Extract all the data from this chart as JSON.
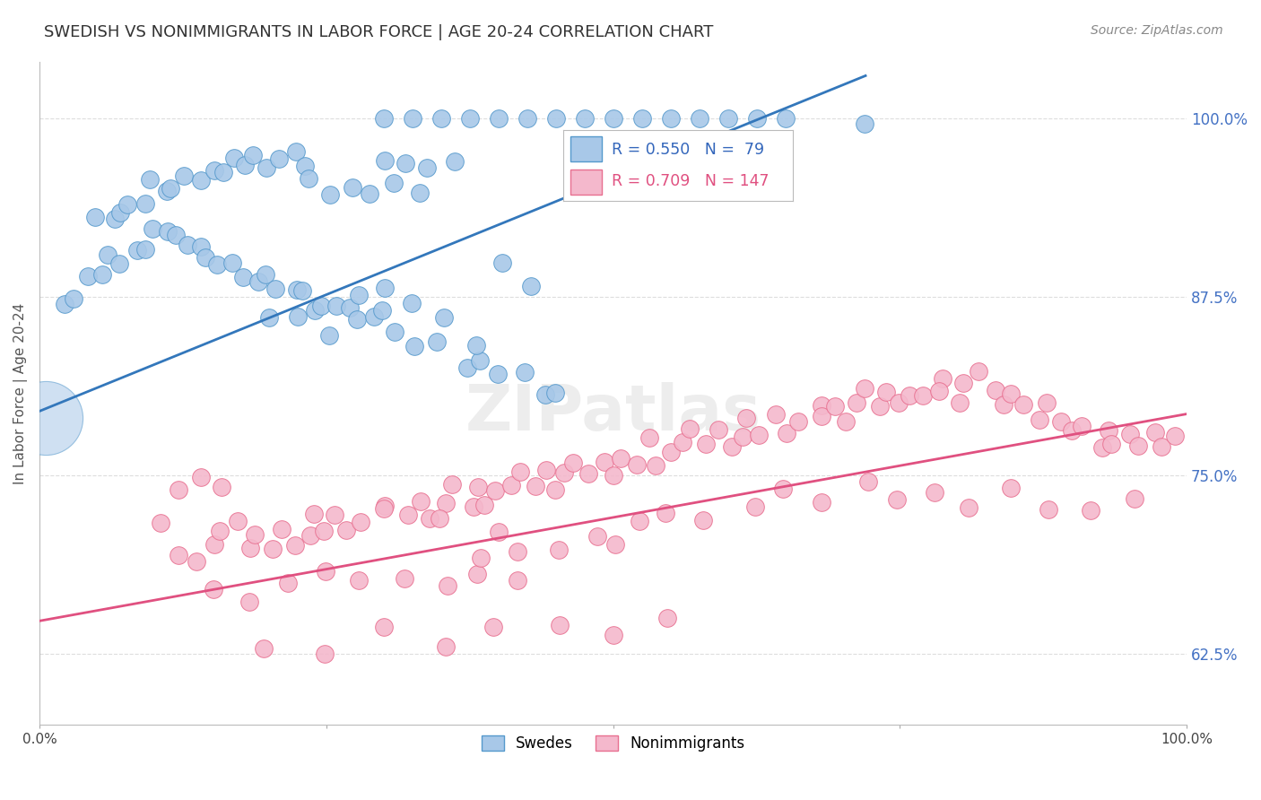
{
  "title": "SWEDISH VS NONIMMIGRANTS IN LABOR FORCE | AGE 20-24 CORRELATION CHART",
  "source": "Source: ZipAtlas.com",
  "ylabel": "In Labor Force | Age 20-24",
  "y_tick_labels": [
    "62.5%",
    "75.0%",
    "87.5%",
    "100.0%"
  ],
  "y_ticks": [
    0.625,
    0.75,
    0.875,
    1.0
  ],
  "xlim": [
    0.0,
    1.0
  ],
  "ylim": [
    0.575,
    1.04
  ],
  "blue_R": 0.55,
  "blue_N": 79,
  "pink_R": 0.709,
  "pink_N": 147,
  "blue_color": "#a8c8e8",
  "blue_edge_color": "#5599cc",
  "blue_line_color": "#3377bb",
  "pink_color": "#f4b8cc",
  "pink_edge_color": "#e87090",
  "pink_line_color": "#e05080",
  "legend_label_blue": "Swedes",
  "legend_label_pink": "Nonimmigrants",
  "title_color": "#333333",
  "grid_color": "#dddddd",
  "blue_line": {
    "x0": 0.0,
    "x1": 0.72,
    "y0": 0.795,
    "y1": 1.03
  },
  "pink_line": {
    "x0": 0.0,
    "x1": 1.0,
    "y0": 0.648,
    "y1": 0.793
  },
  "blue_scatter_x": [
    0.02,
    0.03,
    0.04,
    0.05,
    0.06,
    0.07,
    0.08,
    0.09,
    0.1,
    0.11,
    0.12,
    0.13,
    0.14,
    0.15,
    0.16,
    0.17,
    0.18,
    0.19,
    0.2,
    0.21,
    0.22,
    0.23,
    0.24,
    0.25,
    0.26,
    0.27,
    0.28,
    0.29,
    0.3,
    0.31,
    0.05,
    0.06,
    0.07,
    0.08,
    0.09,
    0.1,
    0.11,
    0.12,
    0.13,
    0.14,
    0.15,
    0.16,
    0.17,
    0.18,
    0.19,
    0.2,
    0.21,
    0.22,
    0.23,
    0.24,
    0.3,
    0.32,
    0.34,
    0.36,
    0.25,
    0.27,
    0.29,
    0.31,
    0.33,
    0.4,
    0.43,
    0.72,
    0.33,
    0.35,
    0.37,
    0.38,
    0.4,
    0.42,
    0.44,
    0.28,
    0.3,
    0.32,
    0.2,
    0.22,
    0.26,
    0.35,
    0.38,
    0.45
  ],
  "blue_scatter_y": [
    0.87,
    0.88,
    0.89,
    0.89,
    0.9,
    0.9,
    0.91,
    0.91,
    0.92,
    0.92,
    0.92,
    0.91,
    0.91,
    0.9,
    0.9,
    0.9,
    0.89,
    0.89,
    0.89,
    0.88,
    0.88,
    0.88,
    0.87,
    0.87,
    0.87,
    0.87,
    0.86,
    0.86,
    0.86,
    0.85,
    0.93,
    0.93,
    0.94,
    0.94,
    0.94,
    0.95,
    0.95,
    0.95,
    0.96,
    0.96,
    0.96,
    0.96,
    0.97,
    0.97,
    0.97,
    0.97,
    0.97,
    0.97,
    0.97,
    0.96,
    0.97,
    0.97,
    0.97,
    0.97,
    0.95,
    0.95,
    0.95,
    0.95,
    0.95,
    0.9,
    0.88,
    1.0,
    0.84,
    0.84,
    0.83,
    0.83,
    0.82,
    0.82,
    0.81,
    0.88,
    0.88,
    0.87,
    0.86,
    0.86,
    0.85,
    0.86,
    0.84,
    0.81
  ],
  "pink_scatter_x": [
    0.1,
    0.12,
    0.14,
    0.15,
    0.16,
    0.17,
    0.18,
    0.19,
    0.2,
    0.21,
    0.22,
    0.23,
    0.24,
    0.25,
    0.26,
    0.27,
    0.28,
    0.3,
    0.32,
    0.33,
    0.34,
    0.35,
    0.36,
    0.37,
    0.38,
    0.39,
    0.4,
    0.41,
    0.42,
    0.43,
    0.44,
    0.45,
    0.46,
    0.47,
    0.48,
    0.49,
    0.5,
    0.51,
    0.52,
    0.53,
    0.54,
    0.55,
    0.56,
    0.57,
    0.58,
    0.59,
    0.6,
    0.61,
    0.62,
    0.63,
    0.64,
    0.65,
    0.66,
    0.67,
    0.68,
    0.69,
    0.7,
    0.71,
    0.72,
    0.73,
    0.74,
    0.75,
    0.76,
    0.77,
    0.78,
    0.79,
    0.8,
    0.81,
    0.82,
    0.83,
    0.84,
    0.85,
    0.86,
    0.87,
    0.88,
    0.89,
    0.9,
    0.91,
    0.92,
    0.93,
    0.94,
    0.95,
    0.96,
    0.97,
    0.98,
    0.99,
    0.15,
    0.18,
    0.22,
    0.25,
    0.28,
    0.32,
    0.35,
    0.38,
    0.42,
    0.45,
    0.48,
    0.52,
    0.55,
    0.58,
    0.62,
    0.65,
    0.68,
    0.72,
    0.75,
    0.78,
    0.82,
    0.85,
    0.88,
    0.92,
    0.95,
    0.2,
    0.25,
    0.3,
    0.35,
    0.4,
    0.45,
    0.5,
    0.55,
    0.12,
    0.14,
    0.16,
    0.3,
    0.35,
    0.4,
    0.5,
    0.38,
    0.42
  ],
  "pink_scatter_y": [
    0.71,
    0.7,
    0.69,
    0.7,
    0.71,
    0.72,
    0.7,
    0.71,
    0.7,
    0.71,
    0.7,
    0.71,
    0.72,
    0.71,
    0.72,
    0.71,
    0.72,
    0.73,
    0.72,
    0.73,
    0.72,
    0.73,
    0.74,
    0.73,
    0.74,
    0.73,
    0.74,
    0.74,
    0.75,
    0.74,
    0.75,
    0.74,
    0.75,
    0.76,
    0.75,
    0.76,
    0.75,
    0.76,
    0.76,
    0.77,
    0.76,
    0.77,
    0.77,
    0.78,
    0.77,
    0.78,
    0.77,
    0.78,
    0.79,
    0.78,
    0.79,
    0.78,
    0.79,
    0.8,
    0.79,
    0.8,
    0.79,
    0.8,
    0.81,
    0.8,
    0.81,
    0.8,
    0.81,
    0.81,
    0.82,
    0.81,
    0.8,
    0.81,
    0.82,
    0.81,
    0.8,
    0.81,
    0.8,
    0.79,
    0.8,
    0.79,
    0.78,
    0.78,
    0.77,
    0.78,
    0.77,
    0.78,
    0.77,
    0.78,
    0.77,
    0.78,
    0.67,
    0.66,
    0.67,
    0.68,
    0.67,
    0.68,
    0.67,
    0.68,
    0.69,
    0.7,
    0.71,
    0.72,
    0.73,
    0.72,
    0.73,
    0.74,
    0.73,
    0.74,
    0.73,
    0.74,
    0.73,
    0.74,
    0.73,
    0.72,
    0.73,
    0.63,
    0.63,
    0.64,
    0.63,
    0.64,
    0.65,
    0.64,
    0.65,
    0.74,
    0.75,
    0.74,
    0.73,
    0.72,
    0.71,
    0.7,
    0.69,
    0.68
  ]
}
